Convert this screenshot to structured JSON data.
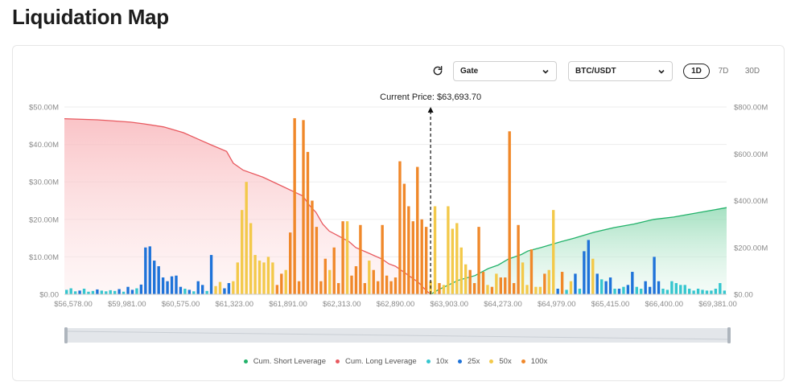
{
  "page": {
    "title": "Liquidation Map"
  },
  "controls": {
    "exchange": "Gate",
    "pair": "BTC/USDT",
    "periods": [
      "1D",
      "7D",
      "30D"
    ],
    "active_period": "1D"
  },
  "colors": {
    "short_line": "#22b26a",
    "short_fill": "#cfeedd",
    "long_line": "#e8595f",
    "long_fill": "#fbd3d4",
    "lev10": "#35c6cf",
    "lev25": "#1f73d9",
    "lev50": "#f3c94a",
    "lev100": "#f0882a"
  },
  "icons": {
    "refresh": "refresh-icon",
    "chevron": "chevron-down-icon"
  },
  "chart_data": {
    "type": "bar",
    "current_price_label": "Current Price: $63,693.70",
    "current_price_position": 0.553,
    "left_ticks": [
      "$0.00",
      "$10.00M",
      "$20.00M",
      "$30.00M",
      "$40.00M",
      "$50.00M"
    ],
    "left_ylim": [
      0,
      50
    ],
    "right_ticks": [
      "$0.00",
      "$200.00M",
      "$400.00M",
      "$600.00M",
      "$800.00M"
    ],
    "right_ylim": [
      0,
      800
    ],
    "x_ticks": [
      "$56,578.00",
      "$59,981.00",
      "$60,575.00",
      "$61,323.00",
      "$61,891.00",
      "$62,313.00",
      "$62,890.00",
      "$63,903.00",
      "$64,273.00",
      "$64,979.00",
      "$65,415.00",
      "$66,400.00",
      "$69,381.00"
    ],
    "legend": [
      {
        "label": "Cum. Short Leverage",
        "key": "short_line"
      },
      {
        "label": "Cum. Long Leverage",
        "key": "long_line"
      },
      {
        "label": "10x",
        "key": "lev10"
      },
      {
        "label": "25x",
        "key": "lev25"
      },
      {
        "label": "50x",
        "key": "lev50"
      },
      {
        "label": "100x",
        "key": "lev100"
      }
    ],
    "bars": [
      {
        "t": 10,
        "v": 1.2
      },
      {
        "t": 10,
        "v": 1.6
      },
      {
        "t": 10,
        "v": 0.8
      },
      {
        "t": 25,
        "v": 1.0
      },
      {
        "t": 10,
        "v": 1.5
      },
      {
        "t": 10,
        "v": 0.7
      },
      {
        "t": 10,
        "v": 0.9
      },
      {
        "t": 25,
        "v": 1.3
      },
      {
        "t": 10,
        "v": 1.0
      },
      {
        "t": 10,
        "v": 0.8
      },
      {
        "t": 10,
        "v": 1.1
      },
      {
        "t": 10,
        "v": 0.9
      },
      {
        "t": 25,
        "v": 1.4
      },
      {
        "t": 10,
        "v": 0.7
      },
      {
        "t": 25,
        "v": 2.0
      },
      {
        "t": 25,
        "v": 1.2
      },
      {
        "t": 10,
        "v": 1.6
      },
      {
        "t": 25,
        "v": 2.6
      },
      {
        "t": 25,
        "v": 12.5
      },
      {
        "t": 25,
        "v": 12.8
      },
      {
        "t": 25,
        "v": 9.0
      },
      {
        "t": 25,
        "v": 7.5
      },
      {
        "t": 25,
        "v": 4.5
      },
      {
        "t": 25,
        "v": 3.5
      },
      {
        "t": 25,
        "v": 4.8
      },
      {
        "t": 25,
        "v": 5.0
      },
      {
        "t": 25,
        "v": 2.0
      },
      {
        "t": 10,
        "v": 1.5
      },
      {
        "t": 25,
        "v": 1.2
      },
      {
        "t": 10,
        "v": 0.8
      },
      {
        "t": 25,
        "v": 3.5
      },
      {
        "t": 25,
        "v": 2.5
      },
      {
        "t": 10,
        "v": 0.9
      },
      {
        "t": 25,
        "v": 10.5
      },
      {
        "t": 50,
        "v": 2.2
      },
      {
        "t": 50,
        "v": 3.3
      },
      {
        "t": 25,
        "v": 1.6
      },
      {
        "t": 25,
        "v": 3.0
      },
      {
        "t": 50,
        "v": 3.5
      },
      {
        "t": 50,
        "v": 8.5
      },
      {
        "t": 50,
        "v": 22.5
      },
      {
        "t": 50,
        "v": 30.0
      },
      {
        "t": 50,
        "v": 19.0
      },
      {
        "t": 50,
        "v": 10.5
      },
      {
        "t": 50,
        "v": 9.0
      },
      {
        "t": 50,
        "v": 8.5
      },
      {
        "t": 50,
        "v": 10.0
      },
      {
        "t": 50,
        "v": 8.5
      },
      {
        "t": 100,
        "v": 2.5
      },
      {
        "t": 100,
        "v": 5.5
      },
      {
        "t": 50,
        "v": 6.5
      },
      {
        "t": 100,
        "v": 16.5
      },
      {
        "t": 100,
        "v": 47.0
      },
      {
        "t": 100,
        "v": 3.5
      },
      {
        "t": 100,
        "v": 46.5
      },
      {
        "t": 100,
        "v": 38.0
      },
      {
        "t": 100,
        "v": 25.0
      },
      {
        "t": 100,
        "v": 18.0
      },
      {
        "t": 100,
        "v": 3.5
      },
      {
        "t": 100,
        "v": 9.5
      },
      {
        "t": 50,
        "v": 6.5
      },
      {
        "t": 100,
        "v": 12.5
      },
      {
        "t": 100,
        "v": 3.0
      },
      {
        "t": 100,
        "v": 19.5
      },
      {
        "t": 50,
        "v": 19.5
      },
      {
        "t": 100,
        "v": 5.0
      },
      {
        "t": 100,
        "v": 7.5
      },
      {
        "t": 100,
        "v": 18.5
      },
      {
        "t": 100,
        "v": 3.0
      },
      {
        "t": 50,
        "v": 9.0
      },
      {
        "t": 100,
        "v": 6.5
      },
      {
        "t": 100,
        "v": 3.5
      },
      {
        "t": 100,
        "v": 18.5
      },
      {
        "t": 100,
        "v": 5.0
      },
      {
        "t": 100,
        "v": 3.5
      },
      {
        "t": 100,
        "v": 4.5
      },
      {
        "t": 100,
        "v": 35.5
      },
      {
        "t": 100,
        "v": 29.5
      },
      {
        "t": 100,
        "v": 23.5
      },
      {
        "t": 100,
        "v": 19.5
      },
      {
        "t": 100,
        "v": 34.0
      },
      {
        "t": 100,
        "v": 20.0
      },
      {
        "t": 100,
        "v": 18.0
      },
      {
        "t": 50,
        "v": 3.5
      },
      {
        "t": 50,
        "v": 23.5
      },
      {
        "t": 100,
        "v": 3.0
      },
      {
        "t": 50,
        "v": 2.5
      },
      {
        "t": 50,
        "v": 23.5
      },
      {
        "t": 50,
        "v": 17.5
      },
      {
        "t": 50,
        "v": 19.0
      },
      {
        "t": 50,
        "v": 12.5
      },
      {
        "t": 50,
        "v": 8.0
      },
      {
        "t": 100,
        "v": 6.5
      },
      {
        "t": 100,
        "v": 3.0
      },
      {
        "t": 100,
        "v": 18.0
      },
      {
        "t": 100,
        "v": 6.0
      },
      {
        "t": 50,
        "v": 2.5
      },
      {
        "t": 100,
        "v": 2.0
      },
      {
        "t": 50,
        "v": 5.5
      },
      {
        "t": 100,
        "v": 4.5
      },
      {
        "t": 100,
        "v": 4.5
      },
      {
        "t": 100,
        "v": 43.5
      },
      {
        "t": 100,
        "v": 3.0
      },
      {
        "t": 100,
        "v": 18.5
      },
      {
        "t": 50,
        "v": 8.5
      },
      {
        "t": 50,
        "v": 2.5
      },
      {
        "t": 100,
        "v": 12.0
      },
      {
        "t": 50,
        "v": 2.0
      },
      {
        "t": 50,
        "v": 2.0
      },
      {
        "t": 100,
        "v": 5.5
      },
      {
        "t": 50,
        "v": 6.5
      },
      {
        "t": 50,
        "v": 22.5
      },
      {
        "t": 25,
        "v": 1.5
      },
      {
        "t": 100,
        "v": 6.0
      },
      {
        "t": 10,
        "v": 1.2
      },
      {
        "t": 50,
        "v": 3.5
      },
      {
        "t": 25,
        "v": 5.5
      },
      {
        "t": 10,
        "v": 1.5
      },
      {
        "t": 25,
        "v": 11.5
      },
      {
        "t": 25,
        "v": 14.5
      },
      {
        "t": 50,
        "v": 9.5
      },
      {
        "t": 25,
        "v": 5.5
      },
      {
        "t": 10,
        "v": 4.0
      },
      {
        "t": 25,
        "v": 3.5
      },
      {
        "t": 25,
        "v": 4.5
      },
      {
        "t": 10,
        "v": 1.5
      },
      {
        "t": 25,
        "v": 1.5
      },
      {
        "t": 10,
        "v": 2.0
      },
      {
        "t": 25,
        "v": 2.5
      },
      {
        "t": 25,
        "v": 6.0
      },
      {
        "t": 10,
        "v": 2.0
      },
      {
        "t": 10,
        "v": 1.5
      },
      {
        "t": 25,
        "v": 3.5
      },
      {
        "t": 25,
        "v": 2.0
      },
      {
        "t": 25,
        "v": 10.0
      },
      {
        "t": 25,
        "v": 3.5
      },
      {
        "t": 10,
        "v": 1.5
      },
      {
        "t": 10,
        "v": 1.2
      },
      {
        "t": 10,
        "v": 3.5
      },
      {
        "t": 10,
        "v": 3.0
      },
      {
        "t": 10,
        "v": 2.5
      },
      {
        "t": 10,
        "v": 2.5
      },
      {
        "t": 10,
        "v": 1.5
      },
      {
        "t": 10,
        "v": 1.0
      },
      {
        "t": 10,
        "v": 1.5
      },
      {
        "t": 10,
        "v": 1.2
      },
      {
        "t": 10,
        "v": 1.0
      },
      {
        "t": 10,
        "v": 1.0
      },
      {
        "t": 10,
        "v": 1.5
      },
      {
        "t": 10,
        "v": 3.0
      },
      {
        "t": 10,
        "v": 1.0
      }
    ],
    "long_curve": [
      [
        0,
        750
      ],
      [
        0.05,
        745
      ],
      [
        0.1,
        735
      ],
      [
        0.12,
        728
      ],
      [
        0.15,
        715
      ],
      [
        0.18,
        690
      ],
      [
        0.2,
        665
      ],
      [
        0.22,
        640
      ],
      [
        0.245,
        610
      ],
      [
        0.255,
        560
      ],
      [
        0.27,
        530
      ],
      [
        0.3,
        500
      ],
      [
        0.33,
        460
      ],
      [
        0.345,
        440
      ],
      [
        0.36,
        420
      ],
      [
        0.37,
        380
      ],
      [
        0.38,
        350
      ],
      [
        0.39,
        300
      ],
      [
        0.4,
        270
      ],
      [
        0.41,
        255
      ],
      [
        0.43,
        225
      ],
      [
        0.44,
        200
      ],
      [
        0.46,
        175
      ],
      [
        0.48,
        150
      ],
      [
        0.49,
        130
      ],
      [
        0.5,
        120
      ],
      [
        0.52,
        80
      ],
      [
        0.535,
        50
      ],
      [
        0.545,
        20
      ],
      [
        0.553,
        0
      ]
    ],
    "short_curve": [
      [
        0.553,
        0
      ],
      [
        0.565,
        20
      ],
      [
        0.58,
        40
      ],
      [
        0.595,
        60
      ],
      [
        0.62,
        80
      ],
      [
        0.64,
        110
      ],
      [
        0.655,
        125
      ],
      [
        0.67,
        150
      ],
      [
        0.69,
        170
      ],
      [
        0.7,
        185
      ],
      [
        0.72,
        200
      ],
      [
        0.75,
        225
      ],
      [
        0.77,
        240
      ],
      [
        0.8,
        265
      ],
      [
        0.83,
        285
      ],
      [
        0.86,
        300
      ],
      [
        0.89,
        320
      ],
      [
        0.92,
        330
      ],
      [
        0.95,
        345
      ],
      [
        0.98,
        360
      ],
      [
        1.0,
        370
      ]
    ]
  }
}
